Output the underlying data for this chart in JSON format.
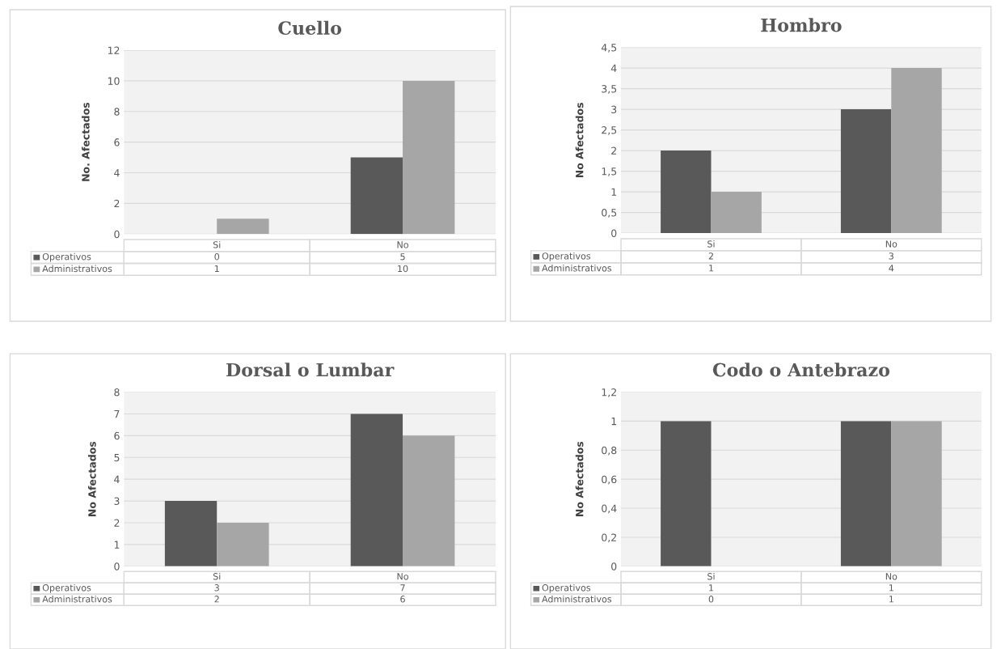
{
  "chart_data": [
    {
      "type": "bar",
      "title": "Cuello",
      "legend": "bottom",
      "ylabel": "No. Afectados",
      "categories": [
        "Si",
        "No"
      ],
      "ylim": [
        0,
        12
      ],
      "yticks": [
        0,
        2,
        4,
        6,
        8,
        10,
        12
      ],
      "grid": "y",
      "data_labels": true,
      "tick_labels": "y",
      "series": [
        {
          "name": "Operativos",
          "color": "#595959",
          "values": [
            0,
            5
          ]
        },
        {
          "name": "Administrativos",
          "color": "#a6a6a6",
          "values": [
            1,
            10
          ]
        }
      ]
    },
    {
      "type": "bar",
      "title": "Hombro",
      "legend": "bottom",
      "ylabel": "No Afectados",
      "categories": [
        "Si",
        "No"
      ],
      "ylim": [
        0,
        4.5
      ],
      "yticks": [
        0,
        {
          "value": 0.5,
          "label": "0,5"
        },
        1,
        {
          "value": 1.5,
          "label": "1,5"
        },
        2,
        {
          "value": 2.5,
          "label": "2,5"
        },
        3,
        {
          "value": 3.5,
          "label": "3,5"
        },
        4,
        {
          "value": 4.5,
          "label": "4,5"
        }
      ],
      "grid": "y",
      "data_labels": true,
      "tick_labels": "y",
      "series": [
        {
          "name": "Operativos",
          "color": "#595959",
          "values": [
            2,
            3
          ]
        },
        {
          "name": "Administrativos",
          "color": "#a6a6a6",
          "values": [
            1,
            4
          ]
        }
      ]
    },
    {
      "type": "bar",
      "title": "Dorsal o Lumbar",
      "legend": "bottom",
      "ylabel": "No Afectados",
      "categories": [
        "Si",
        "No"
      ],
      "ylim": [
        0,
        8
      ],
      "yticks": [
        0,
        1,
        2,
        3,
        4,
        5,
        6,
        7,
        8
      ],
      "grid": "y",
      "data_labels": true,
      "tick_labels": "y",
      "series": [
        {
          "name": "Operativos",
          "color": "#595959",
          "values": [
            3,
            7
          ]
        },
        {
          "name": "Administrativos",
          "color": "#a6a6a6",
          "values": [
            2,
            6
          ]
        }
      ]
    },
    {
      "type": "bar",
      "title": "Codo o Antebrazo",
      "legend": "bottom",
      "ylabel": "No Afectados",
      "categories": [
        "Si",
        "No"
      ],
      "ylim": [
        0,
        1.2
      ],
      "yticks": [
        0,
        {
          "value": 0.2,
          "label": "0,2"
        },
        {
          "value": 0.4,
          "label": "0,4"
        },
        {
          "value": 0.6,
          "label": "0,6"
        },
        {
          "value": 0.8,
          "label": "0,8"
        },
        1,
        {
          "value": 1.2,
          "label": "1,2"
        }
      ],
      "grid": "y",
      "data_labels": true,
      "tick_labels": "y",
      "series": [
        {
          "name": "Operativos",
          "color": "#595959",
          "values": [
            1,
            1
          ]
        },
        {
          "name": "Administrativos",
          "color": "#a6a6a6",
          "values": [
            0,
            1
          ]
        }
      ]
    }
  ]
}
